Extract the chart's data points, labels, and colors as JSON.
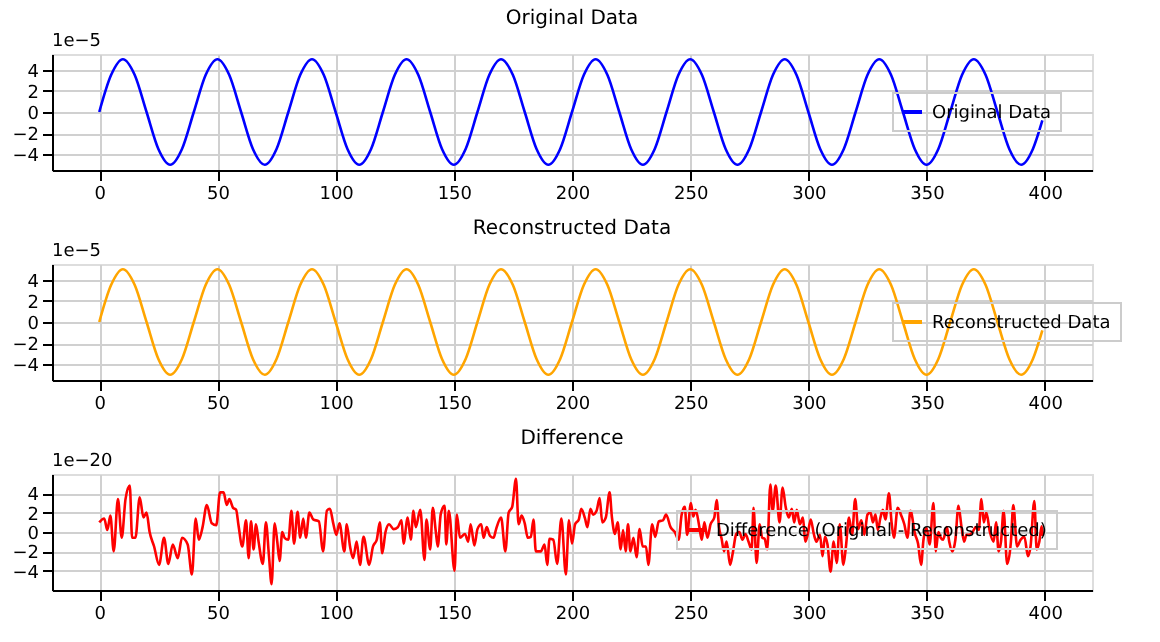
{
  "chart_data": [
    {
      "type": "line",
      "title": "Original Data",
      "annotations": [
        "1e−5"
      ],
      "grid": true,
      "legend": "right",
      "x": [
        0,
        5,
        10,
        15,
        20,
        25,
        30,
        35,
        40,
        45,
        50,
        55,
        60,
        65,
        70,
        75,
        80,
        85,
        90,
        95,
        100,
        105,
        110,
        115,
        120,
        125,
        130,
        135,
        140,
        145,
        150,
        155,
        160,
        165,
        170,
        175,
        180,
        185,
        190,
        195,
        200,
        205,
        210,
        215,
        220,
        225,
        230,
        235,
        240,
        245,
        250,
        255,
        260,
        265,
        270,
        275,
        280,
        285,
        290,
        295,
        300,
        305,
        310,
        315,
        320,
        325,
        330,
        335,
        340,
        345,
        350,
        355,
        360,
        365,
        370,
        375,
        380,
        385,
        390,
        395,
        399
      ],
      "series": [
        {
          "name": "Original Data",
          "color": "#0000ff",
          "values": [
            0,
            3.5,
            5,
            3.5,
            0,
            -3.5,
            -5,
            -3.5,
            0,
            3.5,
            5,
            3.5,
            0,
            -3.5,
            -5,
            -3.5,
            0,
            3.5,
            5,
            3.5,
            0,
            -3.5,
            -5,
            -3.5,
            0,
            3.5,
            5,
            3.5,
            0,
            -3.5,
            -5,
            -3.5,
            0,
            3.5,
            5,
            3.5,
            0,
            -3.5,
            -5,
            -3.5,
            0,
            3.5,
            5,
            3.5,
            0,
            -3.5,
            -5,
            -3.5,
            0,
            3.5,
            5,
            3.5,
            0,
            -3.5,
            -5,
            -3.5,
            0,
            3.5,
            5,
            3.5,
            0,
            -3.5,
            -5,
            -3.5,
            0,
            3.5,
            5,
            3.5,
            0,
            -3.5,
            -5,
            -3.5,
            0,
            3.5,
            5,
            3.5,
            0,
            -3.5,
            -5,
            -3.5,
            -0.8
          ]
        }
      ],
      "xlim": [
        -20,
        420
      ],
      "xticks": [
        0,
        50,
        100,
        150,
        200,
        250,
        300,
        350,
        400
      ],
      "ylim": [
        -5.5,
        5.5
      ],
      "yticks": [
        -4,
        -2,
        0,
        2,
        4
      ]
    },
    {
      "type": "line",
      "title": "Reconstructed Data",
      "annotations": [
        "1e−5"
      ],
      "grid": true,
      "legend": "right",
      "x": [
        0,
        5,
        10,
        15,
        20,
        25,
        30,
        35,
        40,
        45,
        50,
        55,
        60,
        65,
        70,
        75,
        80,
        85,
        90,
        95,
        100,
        105,
        110,
        115,
        120,
        125,
        130,
        135,
        140,
        145,
        150,
        155,
        160,
        165,
        170,
        175,
        180,
        185,
        190,
        195,
        200,
        205,
        210,
        215,
        220,
        225,
        230,
        235,
        240,
        245,
        250,
        255,
        260,
        265,
        270,
        275,
        280,
        285,
        290,
        295,
        300,
        305,
        310,
        315,
        320,
        325,
        330,
        335,
        340,
        345,
        350,
        355,
        360,
        365,
        370,
        375,
        380,
        385,
        390,
        395,
        399
      ],
      "series": [
        {
          "name": "Reconstructed Data",
          "color": "#ffa500",
          "values": [
            0,
            3.5,
            5,
            3.5,
            0,
            -3.5,
            -5,
            -3.5,
            0,
            3.5,
            5,
            3.5,
            0,
            -3.5,
            -5,
            -3.5,
            0,
            3.5,
            5,
            3.5,
            0,
            -3.5,
            -5,
            -3.5,
            0,
            3.5,
            5,
            3.5,
            0,
            -3.5,
            -5,
            -3.5,
            0,
            3.5,
            5,
            3.5,
            0,
            -3.5,
            -5,
            -3.5,
            0,
            3.5,
            5,
            3.5,
            0,
            -3.5,
            -5,
            -3.5,
            0,
            3.5,
            5,
            3.5,
            0,
            -3.5,
            -5,
            -3.5,
            0,
            3.5,
            5,
            3.5,
            0,
            -3.5,
            -5,
            -3.5,
            0,
            3.5,
            5,
            3.5,
            0,
            -3.5,
            -5,
            -3.5,
            0,
            3.5,
            5,
            3.5,
            0,
            -3.5,
            -5,
            -3.5,
            -0.8
          ]
        }
      ],
      "xlim": [
        -20,
        420
      ],
      "xticks": [
        0,
        50,
        100,
        150,
        200,
        250,
        300,
        350,
        400
      ],
      "ylim": [
        -5.5,
        5.5
      ],
      "yticks": [
        -4,
        -2,
        0,
        2,
        4
      ]
    },
    {
      "type": "line",
      "title": "Difference",
      "annotations": [
        "1e−20"
      ],
      "grid": true,
      "legend": "top right",
      "x": [
        0,
        2.1,
        3.4,
        4.7,
        6.1,
        7.9,
        9.5,
        11.1,
        12.9,
        13.9,
        15.3,
        17.1,
        18.7,
        20,
        21.3,
        23.2,
        25.3,
        27.4,
        29.2,
        31.1,
        33.2,
        35,
        37.4,
        39.2,
        40.8,
        42.1,
        43.7,
        45.5,
        47.6,
        49.5,
        51.1,
        52.6,
        53.9,
        55,
        56.6,
        57.9,
        58.9,
        60.5,
        62.1,
        63.2,
        64.2,
        65.3,
        66.3,
        67.4,
        69.2,
        70.5,
        71.8,
        72.9,
        74.2,
        75.3,
        76.3,
        77.4,
        78.4,
        80,
        81.3,
        82.4,
        83.9,
        85,
        86.3,
        87.4,
        88.9,
        90.5,
        92.9,
        94.7,
        96.3,
        97.6,
        98.9,
        100.3,
        101.6,
        103.7,
        104.7,
        106.1,
        107.4,
        108.9,
        110.3,
        111.8,
        114.2,
        115.8,
        117.4,
        118.7,
        119.7,
        121.1,
        122.6,
        124.5,
        126.3,
        127.9,
        128.7,
        130.5,
        131.8,
        132.9,
        133.9,
        135.8,
        137.6,
        138.4,
        140,
        141.1,
        142.4,
        143.2,
        144.5,
        146.1,
        146.8,
        147.9,
        150.3,
        151.3,
        152.6,
        154.7,
        156.1,
        157.1,
        158.7,
        160,
        161.6,
        162.6,
        163.9,
        165.3,
        166.8,
        167.9,
        170,
        171.8,
        173.2,
        174.7,
        176.3,
        177.4,
        178.7,
        180,
        181.3,
        182.6,
        183.7,
        184.7,
        186.8,
        188.4,
        189.5,
        190.5,
        192.1,
        193.7,
        195.5,
        197.4,
        198.7,
        200,
        201.3,
        202.9,
        203.9,
        205.5,
        206.5,
        207.8,
        208.9,
        210.4,
        211.7,
        212.8,
        214.3,
        215.9,
        216.9,
        218.2,
        219.3,
        220.6,
        221.6,
        222.7,
        223.7,
        224.7,
        226,
        227.3,
        228.6,
        229.9,
        231.3,
        232.3,
        233.9,
        235.2,
        236.7,
        238.5,
        239.8,
        241.7,
        243.5,
        245.1,
        246.4,
        247.7,
        248.7,
        250.3,
        251.3,
        252.3,
        253.9,
        254.9,
        256,
        257.3,
        258.6,
        260.2,
        261.2,
        262.2,
        263.3,
        264.3,
        265.4,
        266.9,
        268,
        269.5,
        270.8,
        272.1,
        273.4,
        274.7,
        276,
        276.8,
        278.1,
        279.4,
        280.5,
        281.5,
        282.6,
        283.9,
        284.9,
        286.2,
        287.8,
        289.1,
        290.4,
        291.7,
        293,
        294,
        295.1,
        296.4,
        297.7,
        298.7,
        299.7,
        301,
        302.3,
        303.4,
        304.9,
        306,
        307,
        308.1,
        309.4,
        310.7,
        312,
        313.3,
        314.8,
        315.9,
        317.2,
        318.5,
        319.8,
        321.1,
        322.4,
        323.7,
        325,
        326.3,
        327.3,
        328.4,
        329.4,
        330.5,
        331.5,
        332.6,
        334.1,
        335.2,
        336.2,
        337.8,
        339.3,
        340.6,
        341.9,
        343.2,
        345.1,
        346.4,
        347.7,
        348.7,
        350,
        351.3,
        352.9,
        353.9,
        355,
        356,
        357,
        358.6,
        359.6,
        360.9,
        362.2,
        363.5,
        364.8,
        365.9,
        366.9,
        368,
        369.5,
        370.8,
        372.1,
        373.2,
        374.2,
        375.3,
        376.8,
        378.4,
        379.4,
        380.5,
        381.5,
        382.6,
        384.1,
        385.7,
        386.7,
        388.3,
        389.8,
        391.4,
        392.9,
        394,
        395.6,
        396.6,
        397.7,
        398.7,
        399.2
      ],
      "series": [
        {
          "name": "Difference (Original - Reconstructed)",
          "color": "#ff0000",
          "values": [
            1.0,
            1.4,
            0.2,
            1.7,
            -2.0,
            3.4,
            -0.6,
            3.4,
            4.8,
            -0.6,
            -0.6,
            3.6,
            1.5,
            2.0,
            0,
            -1.5,
            -3.4,
            -0.6,
            -3.3,
            -1.3,
            -2.7,
            -0.6,
            -1.3,
            -4.4,
            1.4,
            -0.8,
            0.5,
            2.8,
            0.9,
            0.7,
            4.1,
            4.1,
            2.8,
            3.4,
            2.5,
            2.3,
            0.7,
            -1.5,
            1.2,
            -2.7,
            1.1,
            -1.8,
            0.8,
            -1.0,
            -3.3,
            1.0,
            -2.5,
            -5.4,
            0.9,
            -1.0,
            -3.0,
            0,
            -0.6,
            -0.8,
            2.2,
            -1.2,
            2.1,
            -0.6,
            1.4,
            -0.6,
            2.0,
            1.3,
            1.1,
            -2.0,
            2.2,
            2.4,
            1.0,
            -0.3,
            0.9,
            -2.0,
            0.8,
            -1.5,
            -2.7,
            -1.0,
            -3.4,
            -0.5,
            -3.4,
            -1.5,
            -0.8,
            1.0,
            -2.2,
            0,
            0.8,
            0.3,
            0.5,
            1.2,
            -1.2,
            1.5,
            -0.8,
            2.2,
            0.5,
            2.3,
            -2.9,
            1.3,
            -1.8,
            2.5,
            0,
            -1.5,
            1.9,
            2.7,
            -1.3,
            2.2,
            -4.0,
            1.8,
            -0.6,
            -0.2,
            -1.0,
            0.8,
            -1.4,
            0.3,
            0.8,
            -0.6,
            0.5,
            -0.4,
            -0.6,
            0.3,
            1.5,
            -2.0,
            2.0,
            2.6,
            5.5,
            0.8,
            1.7,
            0.9,
            -0.6,
            -0.5,
            1.3,
            -2.0,
            -2.0,
            -1.3,
            -3.4,
            -0.7,
            -0.8,
            -3.3,
            1.4,
            -4.4,
            1.2,
            -1.2,
            0.8,
            1.3,
            2.4,
            1.4,
            0.5,
            2.4,
            1.8,
            2.2,
            3.5,
            1.0,
            1.5,
            4.1,
            1.5,
            -0.2,
            1.0,
            -1.8,
            0.2,
            -2.0,
            0.8,
            -2.0,
            -0.6,
            -2.6,
            0.3,
            -1.5,
            -1.5,
            -3.4,
            0.8,
            -0.5,
            1.1,
            1.2,
            1.8,
            0.5,
            0,
            -0.8,
            1.8,
            2.6,
            -0.3,
            3.0,
            1.6,
            2.3,
            0.5,
            -0.8,
            1.0,
            -0.6,
            0.8,
            1.5,
            3.3,
            0.5,
            -0.7,
            -2.0,
            -1.0,
            -3.4,
            -2.2,
            -0.2,
            0,
            -0.8,
            -0.2,
            -1.0,
            -1.8,
            2.5,
            -3.2,
            0.8,
            -0.6,
            -0.7,
            -1.8,
            4.9,
            2.2,
            4.8,
            1.0,
            4.6,
            2.6,
            1.5,
            2.4,
            1.0,
            2.3,
            0.8,
            1.5,
            -1.0,
            -0.3,
            1.3,
            -0.2,
            -1.0,
            -0.3,
            -2.5,
            -0.5,
            -1.3,
            -4.1,
            -1.0,
            -3.2,
            0.8,
            -3.4,
            -1.5,
            1.5,
            -0.3,
            3.4,
            0.3,
            1.2,
            -0.3,
            1.8,
            2.0,
            1.0,
            1.8,
            0.2,
            1.5,
            2.3,
            1.3,
            4.0,
            1.0,
            -0.6,
            2.5,
            1.7,
            0.8,
            -0.6,
            2.2,
            -0.2,
            -1.2,
            -3.4,
            -0.8,
            0.4,
            -1.3,
            3.0,
            -2.0,
            0,
            -0.6,
            -0.8,
            0.5,
            -1.0,
            -2.0,
            -0.8,
            2.7,
            0.5,
            -1.0,
            -0.3,
            -0.3,
            0,
            0.5,
            0.2,
            3.4,
            1.0,
            2.0,
            0,
            -1.0,
            1.0,
            -2.0,
            -1.0,
            2.2,
            -3.3,
            -1.0,
            2.8,
            -1.5,
            -0.8,
            -0.5,
            -2.5,
            -1.5,
            3.2,
            -1.8,
            -1.0,
            0.6,
            -0.4
          ]
        }
      ],
      "xlim": [
        -20,
        420
      ],
      "xticks": [
        0,
        50,
        100,
        150,
        200,
        250,
        300,
        350,
        400
      ],
      "ylim": [
        -6,
        6
      ],
      "yticks": [
        -4,
        -2,
        0,
        2,
        4
      ]
    }
  ]
}
